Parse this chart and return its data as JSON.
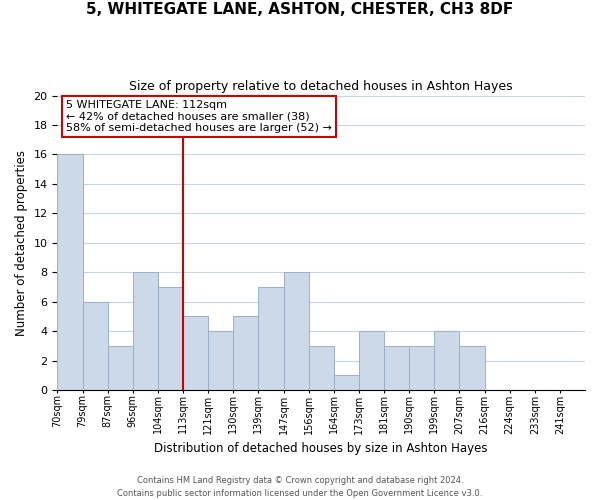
{
  "title": "5, WHITEGATE LANE, ASHTON, CHESTER, CH3 8DF",
  "subtitle": "Size of property relative to detached houses in Ashton Hayes",
  "xlabel": "Distribution of detached houses by size in Ashton Hayes",
  "ylabel": "Number of detached properties",
  "bin_labels": [
    "70sqm",
    "79sqm",
    "87sqm",
    "96sqm",
    "104sqm",
    "113sqm",
    "121sqm",
    "130sqm",
    "139sqm",
    "147sqm",
    "156sqm",
    "164sqm",
    "173sqm",
    "181sqm",
    "190sqm",
    "199sqm",
    "207sqm",
    "216sqm",
    "224sqm",
    "233sqm",
    "241sqm"
  ],
  "bar_values": [
    16,
    6,
    3,
    8,
    7,
    5,
    4,
    5,
    7,
    8,
    3,
    1,
    4,
    3,
    3,
    4,
    3,
    0,
    0,
    0,
    0
  ],
  "bar_color": "#ccd9e8",
  "bar_edge_color": "#9ab0c8",
  "vline_x_index": 5,
  "vline_color": "#cc0000",
  "annotation_line1": "5 WHITEGATE LANE: 112sqm",
  "annotation_line2": "← 42% of detached houses are smaller (38)",
  "annotation_line3": "58% of semi-detached houses are larger (52) →",
  "annotation_box_color": "#ffffff",
  "annotation_box_edge_color": "#cc0000",
  "ylim": [
    0,
    20
  ],
  "yticks": [
    0,
    2,
    4,
    6,
    8,
    10,
    12,
    14,
    16,
    18,
    20
  ],
  "footer_line1": "Contains HM Land Registry data © Crown copyright and database right 2024.",
  "footer_line2": "Contains public sector information licensed under the Open Government Licence v3.0.",
  "background_color": "#ffffff",
  "grid_color": "#c8d4e0"
}
